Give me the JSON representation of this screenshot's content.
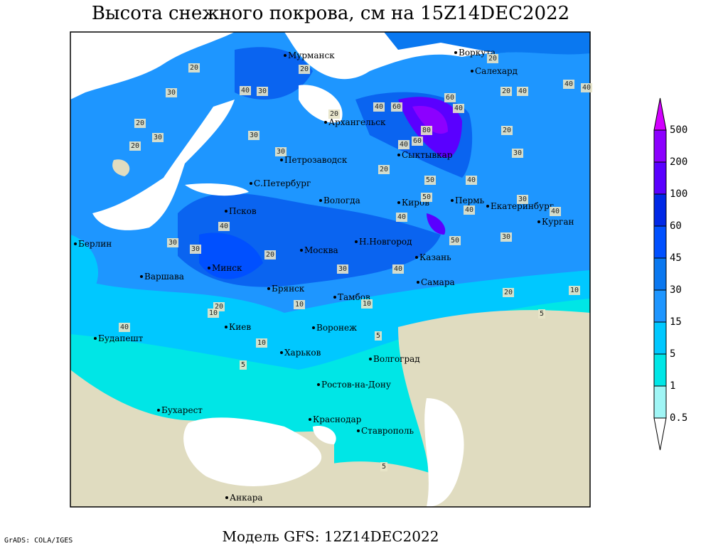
{
  "header": {
    "title": "Высота снежного покрова, см на 15Z14DEC2022"
  },
  "footer": {
    "model": "Модель GFS: 12Z14DEC2022",
    "credit": "GrADS: COLA/IGES"
  },
  "cities": [
    "Мурманск",
    "Воркута",
    "Салехард",
    "Архангельск",
    "Петрозаводск",
    "Сыктывкар",
    "С.Петербург",
    "Вологда",
    "Киров",
    "Пермь",
    "Екатеринбург",
    "Курган",
    "Псков",
    "Берлин",
    "Н.Новгород",
    "Москва",
    "Казань",
    "Варшава",
    "Минск",
    "Самара",
    "Брянск",
    "Тамбов",
    "Воронеж",
    "Киев",
    "Будапешт",
    "Харьков",
    "Волгоград",
    "Ростов-на-Дону",
    "Бухарест",
    "Краснодар",
    "Ставрополь",
    "Анкара"
  ],
  "contour_labels": [
    20,
    20,
    30,
    40,
    30,
    20,
    30,
    20,
    30,
    30,
    20,
    40,
    60,
    60,
    40,
    80,
    40,
    60,
    20,
    50,
    40,
    50,
    40,
    30,
    40,
    40,
    20,
    30,
    40,
    40,
    40,
    20,
    20,
    30,
    40,
    30,
    30,
    20,
    30,
    40,
    50,
    20,
    10,
    5,
    10,
    10,
    20,
    10,
    40,
    10,
    5,
    5,
    5
  ],
  "colorbar": {
    "levels": [
      0.5,
      1,
      5,
      15,
      30,
      45,
      60,
      100,
      200,
      500
    ],
    "colors": [
      "#ffffff",
      "#a0f5f5",
      "#00e6e6",
      "#00c8ff",
      "#1e96ff",
      "#0a78f0",
      "#0050ff",
      "#0028e6",
      "#5a00ff",
      "#8c00ff",
      "#d200ff"
    ]
  }
}
